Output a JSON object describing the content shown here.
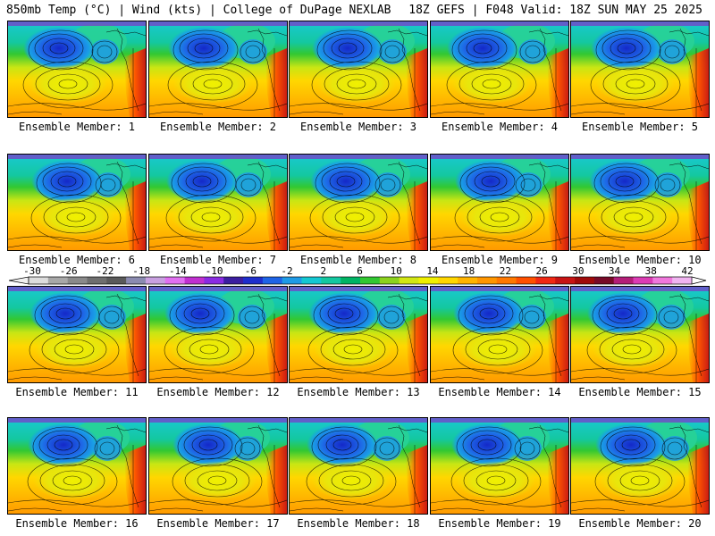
{
  "header": {
    "left": "850mb Temp (°C) | Wind (kts) | College of DuPage NEXLAB",
    "right": "18Z GEFS | F048 Valid: 18Z SUN MAY 25 2025"
  },
  "members": [
    "Ensemble Member: 1",
    "Ensemble Member: 2",
    "Ensemble Member: 3",
    "Ensemble Member: 4",
    "Ensemble Member: 5",
    "Ensemble Member: 6",
    "Ensemble Member: 7",
    "Ensemble Member: 8",
    "Ensemble Member: 9",
    "Ensemble Member: 10",
    "Ensemble Member: 11",
    "Ensemble Member: 12",
    "Ensemble Member: 13",
    "Ensemble Member: 14",
    "Ensemble Member: 15",
    "Ensemble Member: 16",
    "Ensemble Member: 17",
    "Ensemble Member: 18",
    "Ensemble Member: 19",
    "Ensemble Member: 20"
  ],
  "colorbar": {
    "labels": [
      "-30",
      "-26",
      "-22",
      "-18",
      "-14",
      "-10",
      "-6",
      "-2",
      "2",
      "6",
      "10",
      "14",
      "18",
      "22",
      "26",
      "30",
      "34",
      "38",
      "42"
    ],
    "colors": [
      "#dcdcdc",
      "#a8a8a8",
      "#8a8a8a",
      "#6f6f6f",
      "#5a5a5a",
      "#8b8bb0",
      "#c8a0e0",
      "#e070f0",
      "#c030d0",
      "#8a2be2",
      "#3c1ea0",
      "#1e2ecc",
      "#1e64e6",
      "#1e9be6",
      "#14c8d2",
      "#14c8a0",
      "#00b464",
      "#32c832",
      "#8cd21e",
      "#d2e614",
      "#f0f000",
      "#ffd700",
      "#ffb400",
      "#ff9600",
      "#ff7800",
      "#ff5000",
      "#f02814",
      "#c81414",
      "#a00a0a",
      "#780a28",
      "#b41e78",
      "#dc3cb4",
      "#f078dc",
      "#f0b4f0"
    ]
  }
}
